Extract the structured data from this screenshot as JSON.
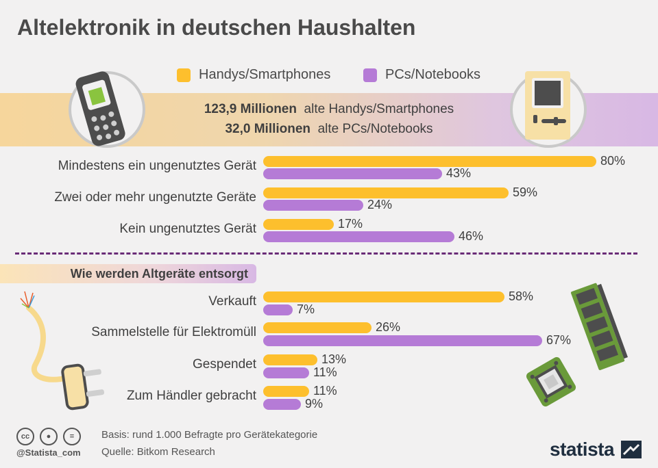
{
  "title": "Altelektronik in deutschen Haushalten",
  "legend": [
    {
      "label": "Handys/Smartphones",
      "color": "#fdbf2d"
    },
    {
      "label": "PCs/Notebooks",
      "color": "#b57bd6"
    }
  ],
  "summary": {
    "line1_bold": "123,9 Millionen",
    "line1_text": "alte Handys/Smartphones",
    "line2_bold": "32,0 Millionen",
    "line2_text": "alte PCs/Notebooks"
  },
  "section_title": "Wie werden Altgeräte entsorgt",
  "footer": {
    "basis": "Basis: rund 1.000 Befragte pro Gerätekategorie",
    "source": "Quelle: Bitkom Research",
    "handle": "@Statista_com",
    "brand": "statista"
  },
  "icons": [
    "mobile-phone-icon",
    "retro-computer-icon",
    "power-cable-plug-icon",
    "ram-module-icon",
    "microchip-board-icon",
    "creative-commons-icon",
    "attribution-icon",
    "no-derivatives-icon",
    "statista-logo-icon"
  ],
  "chart_data": [
    {
      "type": "bar",
      "orientation": "horizontal",
      "categories": [
        "Mindestens ein ungenutztes Gerät",
        "Zwei oder mehr ungenutzte Geräte",
        "Kein ungenutztes Gerät"
      ],
      "series": [
        {
          "name": "Handys/Smartphones",
          "values": [
            80,
            59,
            17
          ],
          "labels": [
            "80%",
            "59%",
            "17%"
          ],
          "color": "#fdbf2d"
        },
        {
          "name": "PCs/Notebooks",
          "values": [
            43,
            24,
            46
          ],
          "labels": [
            "43%",
            "24%",
            "46%"
          ],
          "color": "#b57bd6"
        }
      ],
      "xlim": [
        0,
        80
      ],
      "unit": "%"
    },
    {
      "type": "bar",
      "orientation": "horizontal",
      "title": "Wie werden Altgeräte entsorgt",
      "categories": [
        "Verkauft",
        "Sammelstelle für Elektromüll",
        "Gespendet",
        "Zum Händler gebracht"
      ],
      "series": [
        {
          "name": "Handys/Smartphones",
          "values": [
            58,
            26,
            13,
            11
          ],
          "labels": [
            "58%",
            "26%",
            "13%",
            "11%"
          ],
          "color": "#fdbf2d"
        },
        {
          "name": "PCs/Notebooks",
          "values": [
            7,
            67,
            11,
            9
          ],
          "labels": [
            "7%",
            "67%",
            "11%",
            "9%"
          ],
          "color": "#b57bd6"
        }
      ],
      "xlim": [
        0,
        80
      ],
      "unit": "%"
    }
  ]
}
